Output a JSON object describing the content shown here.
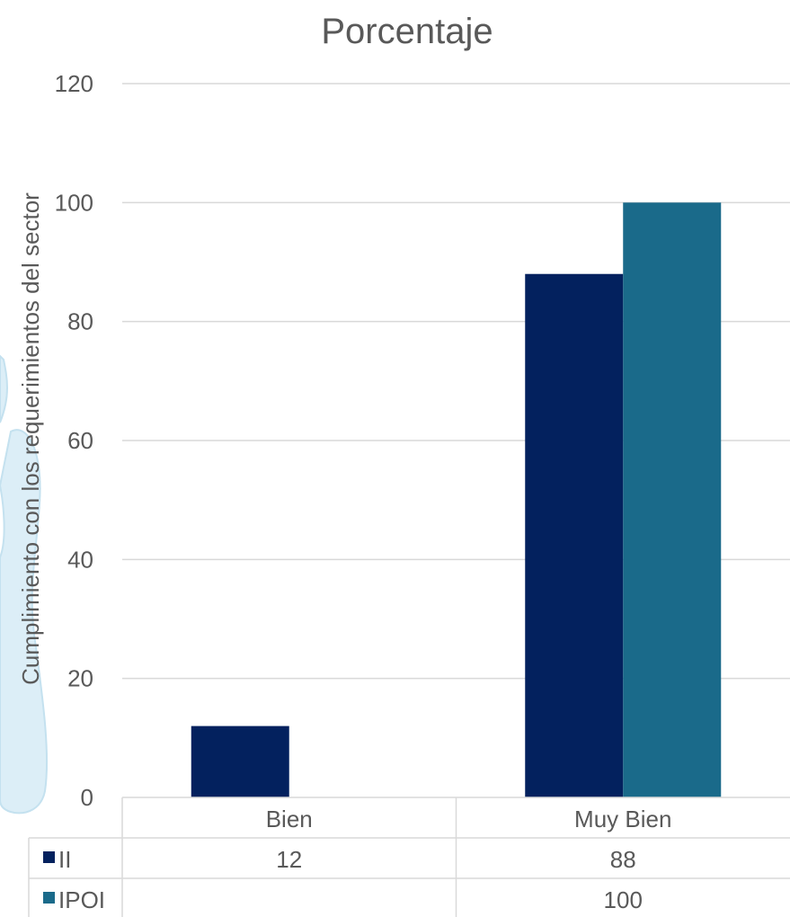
{
  "chart_data": {
    "type": "bar",
    "title": "Porcentaje",
    "ylabel": "Cumplimiento con los requerimientos del sector",
    "xlabel": "",
    "ylim": [
      0,
      120
    ],
    "yticks": [
      0,
      20,
      40,
      60,
      80,
      100,
      120
    ],
    "categories": [
      "Bien",
      "Muy Bien"
    ],
    "series": [
      {
        "name": "II",
        "values": [
          12,
          88
        ],
        "table_values": [
          "12",
          "88"
        ]
      },
      {
        "name": "IPOI",
        "values": [
          null,
          100
        ],
        "table_values": [
          "",
          "100"
        ]
      }
    ],
    "grid": true,
    "legend": "data-table"
  },
  "colors": {
    "II": "#03215e",
    "IPOI": "#1a6a8a",
    "grid": "#d9d9d9",
    "text": "#595959",
    "shape": "#dceef7"
  }
}
